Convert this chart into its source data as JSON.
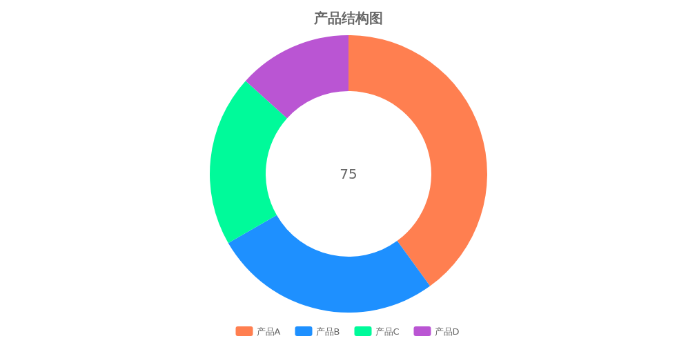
{
  "chart_data": {
    "type": "donut",
    "title": "产品结构图",
    "categories": [
      "产品A",
      "产品B",
      "产品C",
      "产品D"
    ],
    "values": [
      40,
      26.7,
      20,
      13.3
    ],
    "colors": [
      "#ff7f50",
      "#1e90ff",
      "#00fa9a",
      "#ba55d3"
    ],
    "legend": "bottom",
    "annotations": [
      "75"
    ]
  }
}
